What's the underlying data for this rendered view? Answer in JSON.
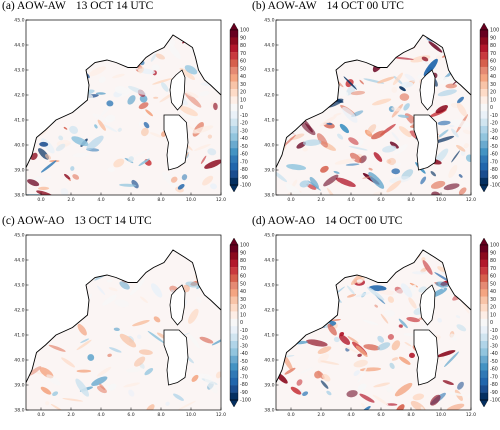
{
  "panels": [
    {
      "tag": "(a) AOW-AW",
      "time": "13 OCT 14 UTC",
      "seed": 11,
      "intensity": 1.0
    },
    {
      "tag": "(b) AOW-AW",
      "time": "14 OCT 00 UTC",
      "seed": 23,
      "intensity": 1.3
    },
    {
      "tag": "(c) AOW-AO",
      "time": "13 OCT 14 UTC",
      "seed": 37,
      "intensity": 0.6
    },
    {
      "tag": "(d) AOW-AO",
      "time": "14 OCT 00 UTC",
      "seed": 53,
      "intensity": 1.0
    }
  ],
  "map": {
    "lon_ticks": [
      "0.0",
      "2.0",
      "4.0",
      "6.0",
      "8.0",
      "10.0",
      "12.0"
    ],
    "lat_ticks": [
      "38.0",
      "39.0",
      "40.0",
      "41.0",
      "42.0",
      "43.0",
      "44.0",
      "45.0"
    ],
    "lon_range": [
      -1.0,
      12.0
    ],
    "lat_range": [
      38.0,
      45.0
    ]
  },
  "colorbar": {
    "labels": [
      "100",
      "90",
      "80",
      "70",
      "60",
      "50",
      "40",
      "30",
      "20",
      "10",
      "0",
      "-10",
      "-20",
      "-30",
      "-40",
      "-50",
      "-60",
      "-70",
      "-80",
      "-90",
      "-100"
    ],
    "colors": [
      "#67001f",
      "#8b0a1e",
      "#b2182b",
      "#c93a3f",
      "#d6604d",
      "#e58a74",
      "#f4a582",
      "#f8c4a8",
      "#fddbc7",
      "#fdeee6",
      "#f7f7f7",
      "#eaf1f8",
      "#d1e5f0",
      "#b0d4e8",
      "#92c5de",
      "#6aaacf",
      "#4393c3",
      "#3079b6",
      "#2166ac",
      "#1a4d8f",
      "#053061"
    ]
  }
}
